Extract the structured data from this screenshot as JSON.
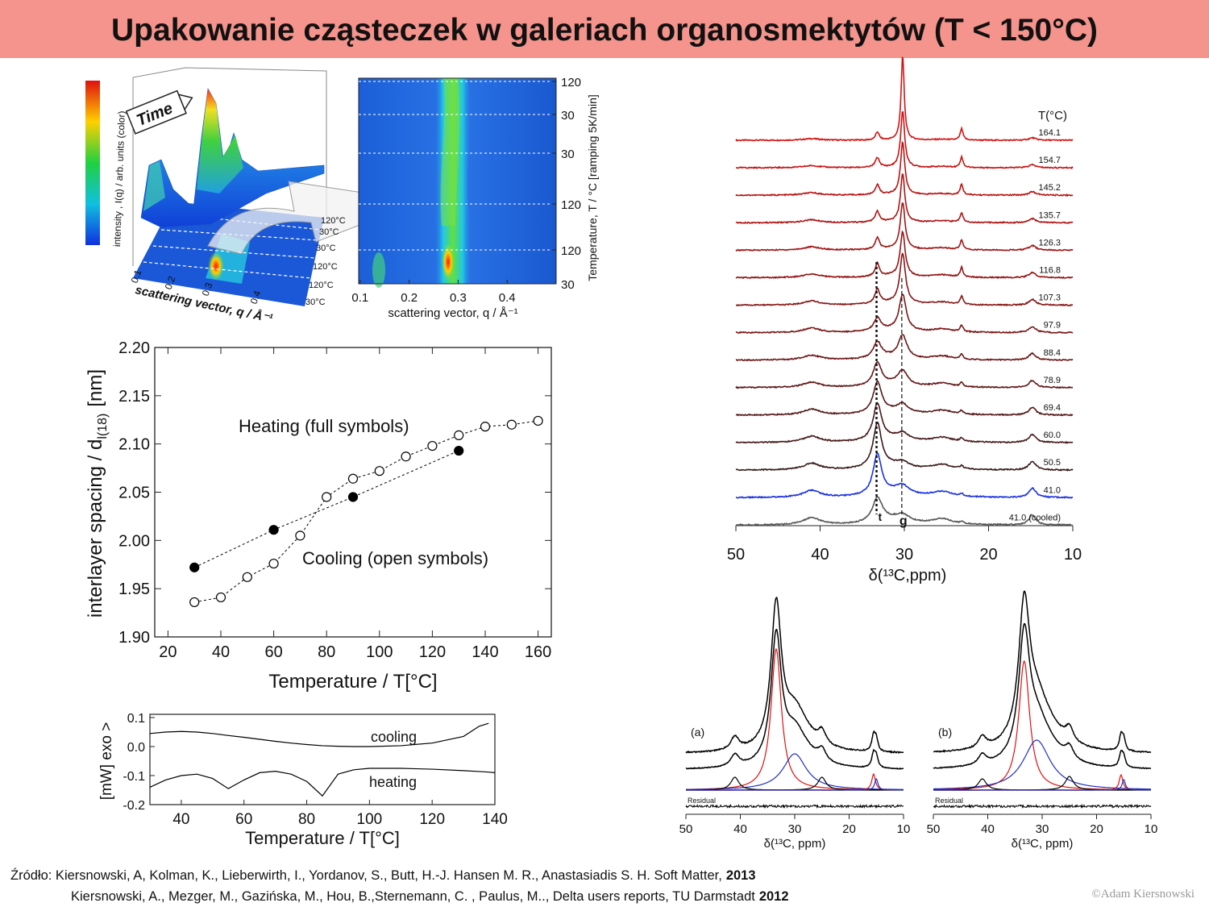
{
  "title": "Upakowanie cząsteczek w galeriach organosmektytów (T < 150°C)",
  "chart_data": [
    {
      "type": "surface3d",
      "annotation": "Time",
      "zlabel": "intensity , I(q) / arb. units (color)",
      "xlabel": "scattering vector, q / Å⁻¹",
      "xticks": [
        0.1,
        0.2,
        0.3,
        0.4
      ],
      "temperature_labels": [
        "120°C",
        "30°C",
        "30°C",
        "120°C",
        "120°C",
        "30°C"
      ]
    },
    {
      "type": "heatmap",
      "xlim": [
        0.097,
        0.5
      ],
      "xticks": [
        0.1,
        0.2,
        0.3,
        0.4
      ],
      "xlabel": "scattering vector, q / Å⁻¹",
      "ylabel": "Temperature, T / °C [ramping 5K/min]",
      "temperature_labels": [
        120,
        30,
        30,
        120,
        120,
        30
      ]
    },
    {
      "type": "scatter",
      "xlim": [
        15,
        165
      ],
      "ylim": [
        1.9,
        2.2
      ],
      "xticks": [
        20,
        40,
        60,
        80,
        100,
        120,
        140,
        160
      ],
      "yticks": [
        {
          "value": 1.9,
          "label": "1.90"
        },
        1.95,
        {
          "value": 2.0,
          "label": "2.00"
        },
        2.05,
        {
          "value": 2.1,
          "label": "2.10"
        },
        2.15,
        {
          "value": 2.2,
          "label": "2.20"
        }
      ],
      "xlabel": "Temperature / T[°C]",
      "ylabel": [
        "interlayer spacing / d",
        "l(18)",
        "[nm]"
      ],
      "annotations": [
        "Heating (full symbols)",
        "Cooling (open symbols)"
      ],
      "series": [
        {
          "marker": "filled",
          "color": "#000000",
          "x": [
            30,
            60,
            90,
            130
          ],
          "values": [
            1.972,
            2.011,
            2.045,
            2.093
          ]
        },
        {
          "marker": "open",
          "color": "#000000",
          "x": [
            30,
            40,
            50,
            60,
            70,
            80,
            90,
            100,
            110,
            120,
            130,
            140,
            150,
            160
          ],
          "values": [
            1.936,
            1.941,
            1.962,
            1.976,
            2.005,
            2.045,
            2.064,
            2.072,
            2.087,
            2.098,
            2.109,
            2.118,
            2.12,
            2.124
          ]
        }
      ]
    },
    {
      "type": "line",
      "xlim": [
        30,
        140
      ],
      "ylim": [
        -0.2,
        0.1
      ],
      "xticks": [
        40,
        60,
        80,
        100,
        120,
        140
      ],
      "yticks": [
        -0.2,
        -0.1,
        {
          "value": 0,
          "label": "0.0"
        },
        0.1
      ],
      "xlabel": "Temperature / T[°C]",
      "ylabel": "[mW] exo >",
      "x": [
        30,
        35,
        40,
        45,
        50,
        55,
        60,
        65,
        70,
        75,
        80,
        85,
        90,
        95,
        100,
        110,
        120,
        130,
        135,
        138,
        140
      ],
      "series": [
        {
          "name": "cooling",
          "color": "#000000",
          "values": [
            0.045,
            0.05,
            0.052,
            0.05,
            0.045,
            0.038,
            0.032,
            0.025,
            0.018,
            0.012,
            0.007,
            0.003,
            0.001,
            0,
            0,
            0.003,
            0.012,
            0.035,
            0.07,
            0.08,
            null
          ]
        },
        {
          "name": "heating",
          "color": "#000000",
          "values": [
            -0.14,
            -0.115,
            -0.1,
            -0.095,
            -0.11,
            -0.145,
            -0.115,
            -0.09,
            -0.085,
            -0.095,
            -0.12,
            -0.17,
            -0.095,
            -0.08,
            -0.075,
            -0.075,
            -0.078,
            -0.083,
            -0.086,
            -0.088,
            -0.09
          ]
        }
      ]
    },
    {
      "type": "spectra",
      "xlim": [
        50,
        10
      ],
      "xticks": [
        50,
        40,
        30,
        20,
        10
      ],
      "xlabel": "δ(¹³C,ppm)",
      "legend_title": "T(°C)",
      "temperature_labels": [
        "164.1",
        "154.7",
        "145.2",
        "135.7",
        "126.3",
        "116.8",
        "107.3",
        "97.9",
        "88.4",
        "78.9",
        "69.4",
        "60.0",
        "50.5",
        "41.0",
        "41.0 (cooled)"
      ],
      "peak_labels": [
        "t",
        "g"
      ]
    },
    {
      "type": "spectra",
      "panel": "(a)",
      "residual_label": "Residual",
      "xlim": [
        50,
        10
      ],
      "xticks": [
        50,
        40,
        30,
        20,
        10
      ],
      "xlabel": "δ(¹³C, ppm)"
    },
    {
      "type": "spectra",
      "panel": "(b)",
      "residual_label": "Residual",
      "xlim": [
        50,
        10
      ],
      "xticks": [
        50,
        40,
        30,
        20,
        10
      ],
      "xlabel": "δ(¹³C, ppm)"
    }
  ],
  "sources": [
    {
      "text": "Źródło: Kiersnowski, A, Kolman, K., Lieberwirth, I., Yordanov, S., Butt,  H.-J. Hansen M. R., Anastasiadis S. H. Soft Matter,",
      "year": "2013"
    },
    {
      "text": "Kiersnowski, A., Mezger, M.,  Gazińska, M., Hou, B.,Sternemann, C. , Paulus, M.., Delta users reports, TU Darmstadt",
      "year": "2012"
    }
  ],
  "copyright": "©Adam Kiersnowski"
}
